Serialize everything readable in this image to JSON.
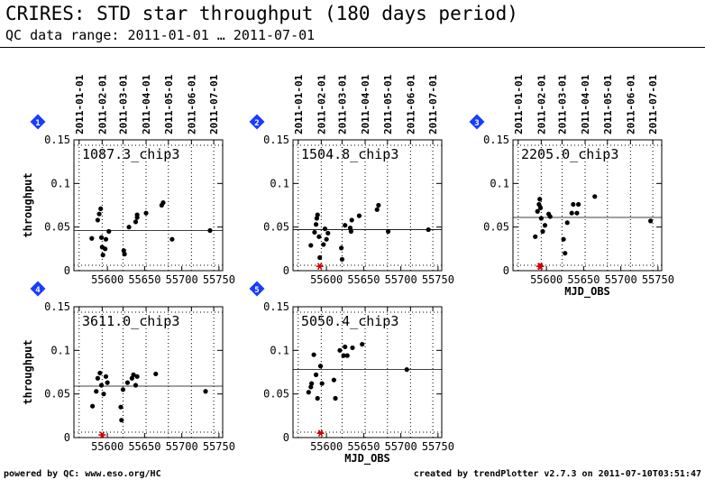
{
  "header": {
    "title": "CRIRES: STD star throughput (180 days period)",
    "subtitle": "QC data range: 2011-01-01 … 2011-07-01"
  },
  "footer": {
    "left": "powered by QC: www.eso.org/HC",
    "right": "created by trendPlotter v2.7.3 on 2011-07-10T03:51:47"
  },
  "colors": {
    "points": "#000000",
    "flagged": "#cc0000",
    "badge": "#1a3cff",
    "grid": "#000000"
  },
  "shared_axes": {
    "xlim": [
      55555,
      55755
    ],
    "xticks": [
      55600,
      55650,
      55700,
      55750
    ],
    "date_ticks": [
      "2011-01-01",
      "2011-02-01",
      "2011-03-01",
      "2011-04-01",
      "2011-05-01",
      "2011-06-01",
      "2011-07-01"
    ],
    "date_tick_mjd": [
      55562,
      55593,
      55621,
      55652,
      55682,
      55713,
      55743
    ],
    "ylim": [
      0,
      0.15
    ],
    "yticks": [
      0,
      0.05,
      0.1,
      0.15
    ],
    "ytick_labels": [
      "0",
      "0.05",
      "0.1",
      "0.15"
    ],
    "vertical_grid": "dotted at month boundaries",
    "xlabel": "MJD_OBS",
    "ylabel": "throughput"
  },
  "chart_data": [
    {
      "type": "scatter",
      "badge": "1",
      "label": "1087.3_chip3",
      "show_ylabel": true,
      "show_xlabel": false,
      "show_date_axis": true,
      "median": 0.046,
      "points": [
        [
          55579,
          0.037
        ],
        [
          55587,
          0.058
        ],
        [
          55589,
          0.065
        ],
        [
          55591,
          0.071
        ],
        [
          55592,
          0.038
        ],
        [
          55593,
          0.027
        ],
        [
          55594,
          0.018
        ],
        [
          55597,
          0.025
        ],
        [
          55598,
          0.036
        ],
        [
          55602,
          0.045
        ],
        [
          55622,
          0.023
        ],
        [
          55623,
          0.019
        ],
        [
          55629,
          0.05
        ],
        [
          55638,
          0.056
        ],
        [
          55640,
          0.064
        ],
        [
          55640,
          0.061
        ],
        [
          55652,
          0.066
        ],
        [
          55673,
          0.075
        ],
        [
          55675,
          0.078
        ],
        [
          55687,
          0.036
        ],
        [
          55738,
          0.046
        ]
      ],
      "flagged": []
    },
    {
      "type": "scatter",
      "badge": "2",
      "label": "1504.8_chip3",
      "show_ylabel": false,
      "show_xlabel": false,
      "show_date_axis": true,
      "median": 0.047,
      "points": [
        [
          55579,
          0.029
        ],
        [
          55584,
          0.044
        ],
        [
          55586,
          0.053
        ],
        [
          55587,
          0.06
        ],
        [
          55588,
          0.064
        ],
        [
          55590,
          0.039
        ],
        [
          55591,
          0.015
        ],
        [
          55596,
          0.03
        ],
        [
          55598,
          0.048
        ],
        [
          55600,
          0.036
        ],
        [
          55602,
          0.043
        ],
        [
          55620,
          0.026
        ],
        [
          55621,
          0.013
        ],
        [
          55625,
          0.052
        ],
        [
          55632,
          0.049
        ],
        [
          55633,
          0.045
        ],
        [
          55634,
          0.058
        ],
        [
          55644,
          0.063
        ],
        [
          55668,
          0.07
        ],
        [
          55670,
          0.075
        ],
        [
          55683,
          0.045
        ],
        [
          55737,
          0.047
        ]
      ],
      "flagged": [
        [
          55591,
          0.005
        ]
      ]
    },
    {
      "type": "scatter",
      "badge": "3",
      "label": "2205.0_chip3",
      "show_ylabel": false,
      "show_xlabel": true,
      "show_date_axis": true,
      "median": 0.061,
      "points": [
        [
          55585,
          0.039
        ],
        [
          55588,
          0.068
        ],
        [
          55590,
          0.076
        ],
        [
          55591,
          0.082
        ],
        [
          55592,
          0.072
        ],
        [
          55593,
          0.06
        ],
        [
          55595,
          0.045
        ],
        [
          55598,
          0.052
        ],
        [
          55603,
          0.065
        ],
        [
          55605,
          0.062
        ],
        [
          55623,
          0.036
        ],
        [
          55625,
          0.02
        ],
        [
          55628,
          0.055
        ],
        [
          55634,
          0.066
        ],
        [
          55636,
          0.076
        ],
        [
          55641,
          0.066
        ],
        [
          55643,
          0.076
        ],
        [
          55665,
          0.085
        ],
        [
          55740,
          0.057
        ]
      ],
      "flagged": [
        [
          55591,
          0.005
        ],
        [
          55592,
          0.005
        ]
      ]
    },
    {
      "type": "scatter",
      "badge": "4",
      "label": "3611.0_chip3",
      "show_ylabel": true,
      "show_xlabel": false,
      "show_date_axis": false,
      "median": 0.059,
      "points": [
        [
          55580,
          0.036
        ],
        [
          55585,
          0.053
        ],
        [
          55587,
          0.068
        ],
        [
          55590,
          0.074
        ],
        [
          55592,
          0.06
        ],
        [
          55595,
          0.05
        ],
        [
          55598,
          0.07
        ],
        [
          55600,
          0.063
        ],
        [
          55618,
          0.035
        ],
        [
          55619,
          0.02
        ],
        [
          55621,
          0.055
        ],
        [
          55627,
          0.063
        ],
        [
          55633,
          0.068
        ],
        [
          55635,
          0.072
        ],
        [
          55638,
          0.06
        ],
        [
          55640,
          0.07
        ],
        [
          55665,
          0.073
        ],
        [
          55732,
          0.053
        ]
      ],
      "flagged": [
        [
          55593,
          0.003
        ]
      ]
    },
    {
      "type": "scatter",
      "badge": "5",
      "label": "5050.4_chip3",
      "show_ylabel": false,
      "show_xlabel": true,
      "show_date_axis": false,
      "median": 0.078,
      "points": [
        [
          55576,
          0.052
        ],
        [
          55579,
          0.058
        ],
        [
          55580,
          0.062
        ],
        [
          55583,
          0.095
        ],
        [
          55586,
          0.072
        ],
        [
          55588,
          0.045
        ],
        [
          55592,
          0.082
        ],
        [
          55594,
          0.062
        ],
        [
          55610,
          0.066
        ],
        [
          55612,
          0.045
        ],
        [
          55618,
          0.1
        ],
        [
          55623,
          0.094
        ],
        [
          55625,
          0.104
        ],
        [
          55628,
          0.094
        ],
        [
          55635,
          0.103
        ],
        [
          55648,
          0.107
        ],
        [
          55708,
          0.078
        ]
      ],
      "flagged": [
        [
          55592,
          0.005
        ]
      ]
    }
  ]
}
